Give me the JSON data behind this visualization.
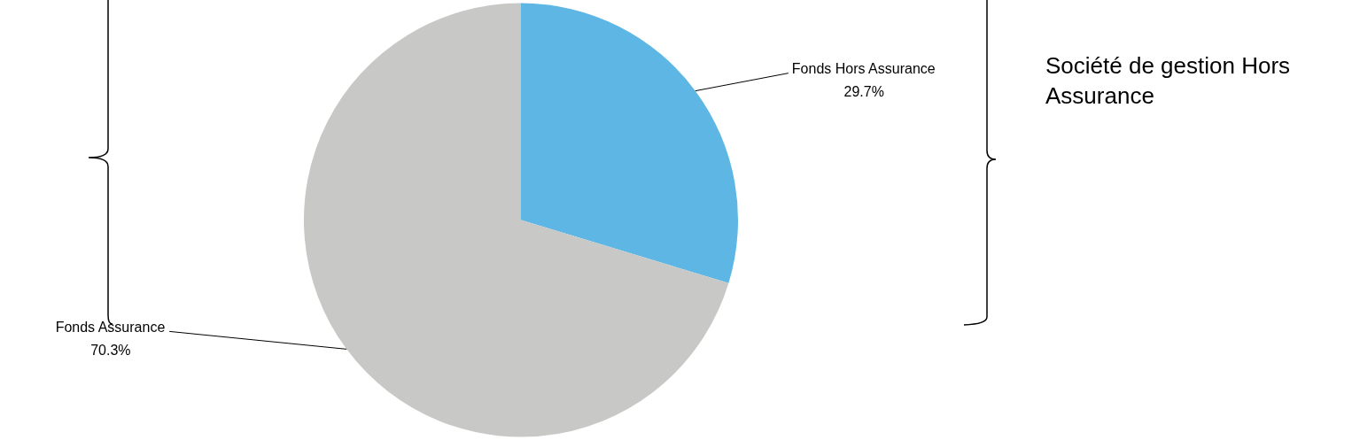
{
  "chart_data": {
    "type": "pie",
    "categories": [
      "Fonds Hors Assurance",
      "Fonds Assurance"
    ],
    "values": [
      29.7,
      70.3
    ],
    "colors": [
      "#5eb6e4",
      "#c8c8c7"
    ],
    "value_labels": [
      "29.7%",
      "70.3%"
    ],
    "legend": false,
    "annotations": [
      "Société de gestion Hors Assurance"
    ]
  }
}
